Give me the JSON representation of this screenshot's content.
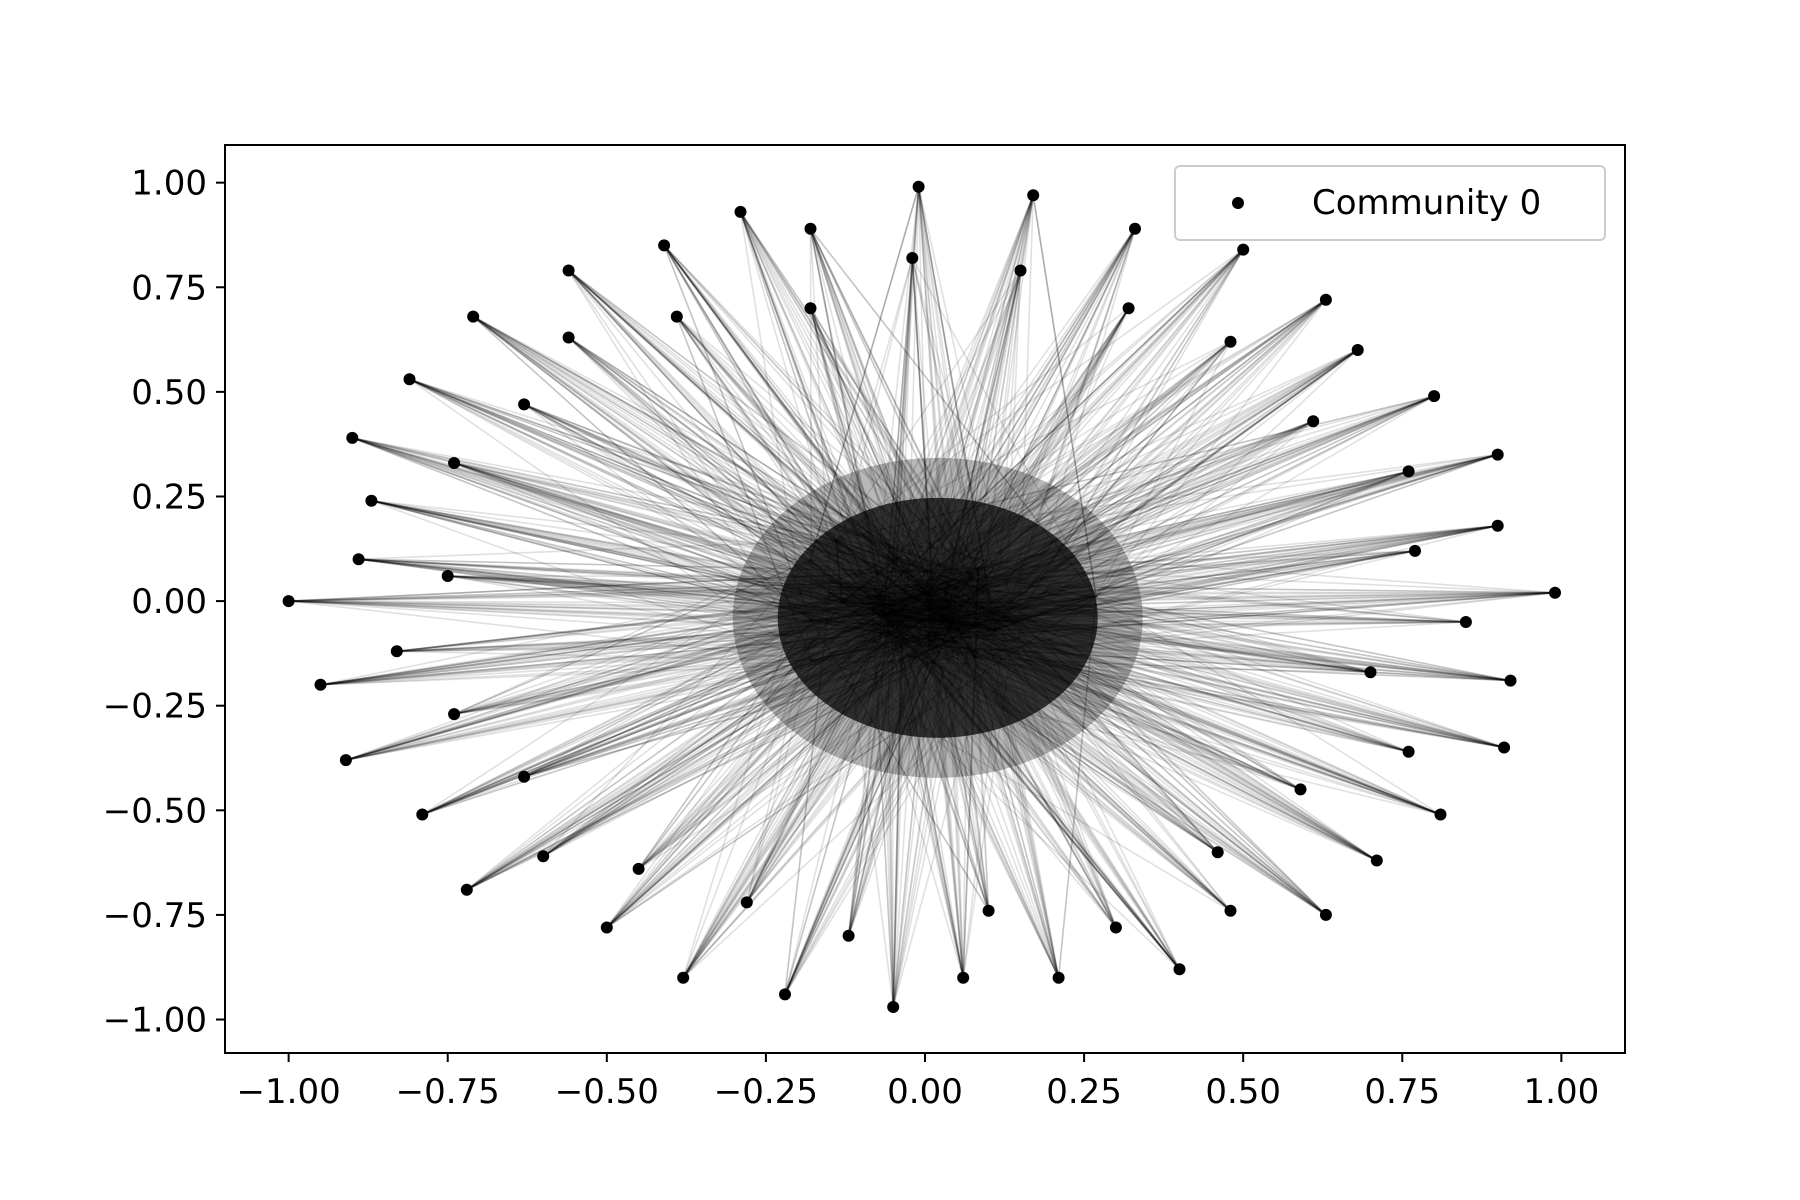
{
  "chart_data": {
    "type": "scatter",
    "title": "",
    "xlabel": "",
    "ylabel": "",
    "xlim": [
      -1.1,
      1.1
    ],
    "ylim": [
      -1.08,
      1.09
    ],
    "x_ticks": [
      "−1.00",
      "−0.75",
      "−0.50",
      "−0.25",
      "0.00",
      "0.25",
      "0.50",
      "0.75",
      "1.00"
    ],
    "x_tick_values": [
      -1.0,
      -0.75,
      -0.5,
      -0.25,
      0.0,
      0.25,
      0.5,
      0.75,
      1.0
    ],
    "y_ticks": [
      "1.00",
      "0.75",
      "0.50",
      "0.25",
      "0.00",
      "−0.25",
      "−0.50",
      "−0.75",
      "−1.00"
    ],
    "y_tick_values": [
      1.0,
      0.75,
      0.5,
      0.25,
      0.0,
      -0.25,
      -0.5,
      -0.75,
      -1.0
    ],
    "grid": false,
    "legend": {
      "placement": "top-right",
      "entries": [
        "Community 0"
      ]
    },
    "marker_color": "#000000",
    "edge_color": "#000000",
    "edge_opacity": 0.12,
    "series": [
      {
        "name": "Community 0",
        "outer_nodes": [
          [
            -0.01,
            0.99
          ],
          [
            0.17,
            0.97
          ],
          [
            0.33,
            0.89
          ],
          [
            0.5,
            0.84
          ],
          [
            0.63,
            0.72
          ],
          [
            0.68,
            0.6
          ],
          [
            0.8,
            0.49
          ],
          [
            0.9,
            0.35
          ],
          [
            0.9,
            0.18
          ],
          [
            0.99,
            0.02
          ],
          [
            0.92,
            -0.19
          ],
          [
            0.91,
            -0.35
          ],
          [
            0.81,
            -0.51
          ],
          [
            0.71,
            -0.62
          ],
          [
            0.63,
            -0.75
          ],
          [
            0.4,
            -0.88
          ],
          [
            0.21,
            -0.9
          ],
          [
            0.06,
            -0.9
          ],
          [
            -0.05,
            -0.97
          ],
          [
            -0.22,
            -0.94
          ],
          [
            -0.38,
            -0.9
          ],
          [
            -0.5,
            -0.78
          ],
          [
            -0.72,
            -0.69
          ],
          [
            -0.79,
            -0.51
          ],
          [
            -0.91,
            -0.38
          ],
          [
            -0.95,
            -0.2
          ],
          [
            -1.0,
            0.0
          ],
          [
            -0.89,
            0.1
          ],
          [
            -0.87,
            0.24
          ],
          [
            -0.9,
            0.39
          ],
          [
            -0.81,
            0.53
          ],
          [
            -0.71,
            0.68
          ],
          [
            -0.56,
            0.79
          ],
          [
            -0.41,
            0.85
          ],
          [
            -0.29,
            0.93
          ],
          [
            -0.18,
            0.89
          ]
        ],
        "inner_nodes": [
          [
            -0.02,
            0.82
          ],
          [
            0.15,
            0.79
          ],
          [
            0.32,
            0.7
          ],
          [
            0.48,
            0.62
          ],
          [
            0.61,
            0.43
          ],
          [
            0.76,
            0.31
          ],
          [
            0.77,
            0.12
          ],
          [
            0.85,
            -0.05
          ],
          [
            0.7,
            -0.17
          ],
          [
            0.76,
            -0.36
          ],
          [
            0.59,
            -0.45
          ],
          [
            0.46,
            -0.6
          ],
          [
            0.48,
            -0.74
          ],
          [
            0.3,
            -0.78
          ],
          [
            0.1,
            -0.74
          ],
          [
            -0.12,
            -0.8
          ],
          [
            -0.28,
            -0.72
          ],
          [
            -0.45,
            -0.64
          ],
          [
            -0.6,
            -0.61
          ],
          [
            -0.63,
            -0.42
          ],
          [
            -0.74,
            -0.27
          ],
          [
            -0.83,
            -0.12
          ],
          [
            -0.75,
            0.06
          ],
          [
            -0.74,
            0.33
          ],
          [
            -0.63,
            0.47
          ],
          [
            -0.56,
            0.63
          ],
          [
            -0.39,
            0.68
          ],
          [
            -0.18,
            0.7
          ]
        ]
      }
    ]
  }
}
